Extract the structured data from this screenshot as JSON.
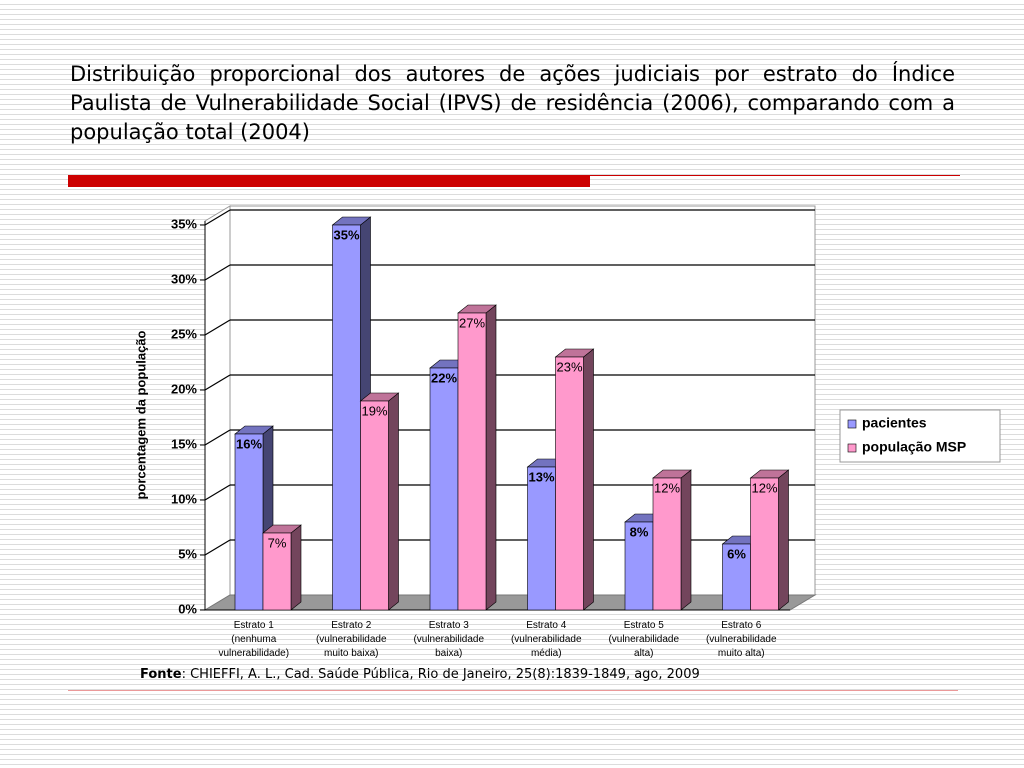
{
  "chart_data": {
    "type": "bar3d",
    "title": "Distribuição proporcional dos autores de ações judiciais por estrato do Índice Paulista de Vulnerabilidade Social (IPVS) de residência (2006), comparando com a população total (2004)",
    "y_label": "porcentagem da população",
    "categories": [
      "Estrato 1\n(nenhuma\nvulnerabilidade)",
      "Estrato 2\n(vulnerabilidade\nmuito baixa)",
      "Estrato 3\n(vulnerabilidade\nbaixa)",
      "Estrato 4\n(vulnerabilidade\nmédia)",
      "Estrato 5\n(vulnerabilidade\nalta)",
      "Estrato 6\n(vulnerabilidade\nmuito alta)"
    ],
    "series": [
      {
        "name": "pacientes",
        "color": "#9999ff",
        "values": [
          16,
          35,
          22,
          13,
          8,
          6
        ],
        "value_labels": [
          "16%",
          "35%",
          "22%",
          "13%",
          "8%",
          "6%"
        ]
      },
      {
        "name": "população MSP",
        "color": "#ff99cc",
        "values": [
          7,
          19,
          27,
          23,
          12,
          12
        ],
        "value_labels": [
          "7%",
          "19%",
          "27%",
          "23%",
          "12%",
          "12%"
        ]
      }
    ],
    "ylim": [
      0,
      35
    ],
    "yticks": [
      {
        "value": 0,
        "label": "0%"
      },
      {
        "value": 5,
        "label": "5%"
      },
      {
        "value": 10,
        "label": "10%"
      },
      {
        "value": 15,
        "label": "15%"
      },
      {
        "value": 20,
        "label": "20%"
      },
      {
        "value": 25,
        "label": "25%"
      },
      {
        "value": 30,
        "label": "30%"
      },
      {
        "value": 35,
        "label": "35%"
      }
    ],
    "grid": true,
    "legend": "right",
    "source_label": "Fonte",
    "source_text": ": CHIEFFI, A. L., Cad. Saúde Pública, Rio de Janeiro, 25(8):1839-1849, ago, 2009"
  }
}
